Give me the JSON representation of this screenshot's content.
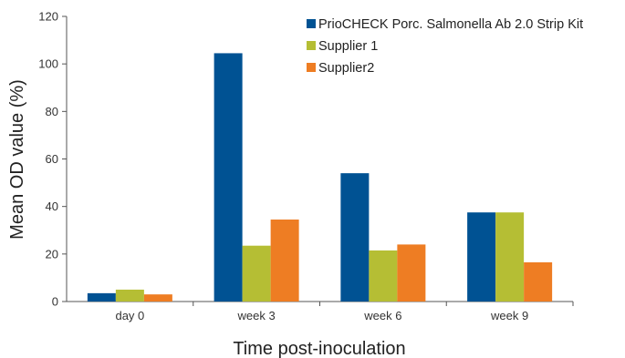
{
  "chart_data": {
    "type": "bar",
    "title": "",
    "xlabel": "Time post-inoculation",
    "ylabel": "Mean OD value (%)",
    "ylim": [
      0,
      120
    ],
    "yticks": [
      0,
      20,
      40,
      60,
      80,
      100,
      120
    ],
    "categories": [
      "day 0",
      "week 3",
      "week 6",
      "week 9"
    ],
    "series": [
      {
        "name": "PrioCHECK Porc. Salmonella Ab 2.0 Strip Kit",
        "color": "#005293",
        "values": [
          3.5,
          104.5,
          54,
          37.5
        ]
      },
      {
        "name": "Supplier 1",
        "color": "#b5be34",
        "values": [
          5,
          23.5,
          21.5,
          37.5
        ]
      },
      {
        "name": "Supplier2",
        "color": "#ee7d23",
        "values": [
          3,
          34.5,
          24,
          16.5
        ]
      }
    ],
    "legend_position": "top-right",
    "grid": false
  }
}
